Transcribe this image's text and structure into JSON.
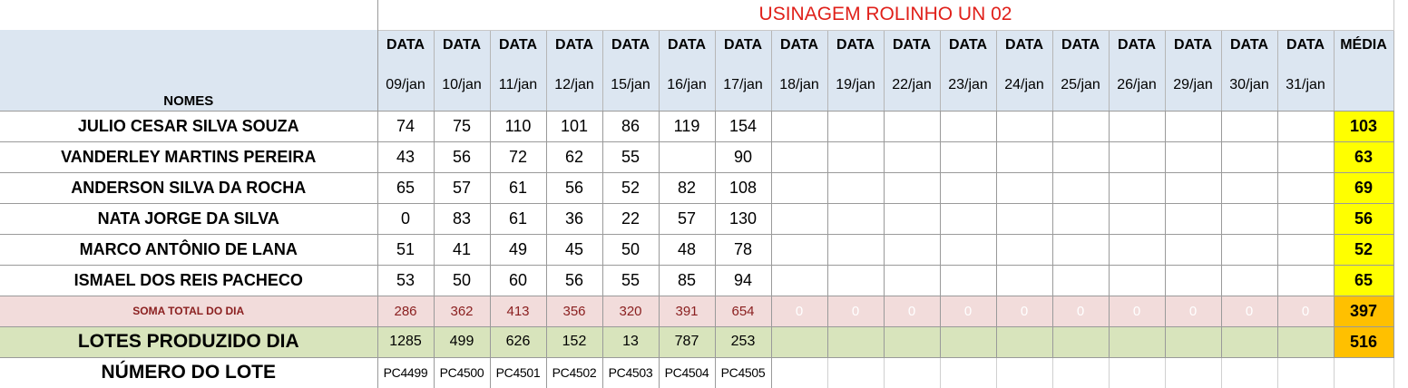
{
  "sheet_title": "USINAGEM ROLINHO UN 02",
  "names_header": "NOMES",
  "data_label": "DATA",
  "average_header": "MÉDIA",
  "dates": [
    "09/jan",
    "10/jan",
    "11/jan",
    "12/jan",
    "15/jan",
    "16/jan",
    "17/jan",
    "18/jan",
    "19/jan",
    "22/jan",
    "23/jan",
    "24/jan",
    "25/jan",
    "26/jan",
    "29/jan",
    "30/jan",
    "31/jan"
  ],
  "workers": [
    {
      "name": "JULIO CESAR SILVA SOUZA",
      "values": [
        "74",
        "75",
        "110",
        "101",
        "86",
        "119",
        "154"
      ],
      "average": "103"
    },
    {
      "name": "VANDERLEY MARTINS PEREIRA",
      "values": [
        "43",
        "56",
        "72",
        "62",
        "55",
        "",
        "90"
      ],
      "average": "63"
    },
    {
      "name": "ANDERSON SILVA DA ROCHA",
      "values": [
        "65",
        "57",
        "61",
        "56",
        "52",
        "82",
        "108"
      ],
      "average": "69"
    },
    {
      "name": "NATA JORGE DA SILVA",
      "values": [
        "0",
        "83",
        "61",
        "36",
        "22",
        "57",
        "130"
      ],
      "average": "56"
    },
    {
      "name": "MARCO ANTÔNIO DE LANA",
      "values": [
        "51",
        "41",
        "49",
        "45",
        "50",
        "48",
        "78"
      ],
      "average": "52"
    },
    {
      "name": "ISMAEL DOS REIS PACHECO",
      "values": [
        "53",
        "50",
        "60",
        "56",
        "55",
        "85",
        "94"
      ],
      "average": "65"
    }
  ],
  "daily_total": {
    "label": "SOMA TOTAL DO DIA",
    "values": [
      "286",
      "362",
      "413",
      "356",
      "320",
      "391",
      "654",
      "0",
      "0",
      "0",
      "0",
      "0",
      "0",
      "0",
      "0",
      "0",
      "0"
    ],
    "average": "397"
  },
  "lots_produced": {
    "label": "LOTES PRODUZIDO DIA",
    "values": [
      "1285",
      "499",
      "626",
      "152",
      "13",
      "787",
      "253"
    ],
    "average": "516"
  },
  "lot_numbers": {
    "label": "NÚMERO DO LOTE",
    "values": [
      "PC4499",
      "PC4500",
      "PC4501",
      "PC4502",
      "PC4503",
      "PC4504",
      "PC4505"
    ]
  },
  "colors": {
    "title_red": "#e0201a",
    "header_blue": "#dce6f1",
    "average_yellow": "#ffff00",
    "total_pink": "#f2dcdb",
    "total_average_orange": "#ffc000",
    "lots_green": "#d8e4bc"
  }
}
